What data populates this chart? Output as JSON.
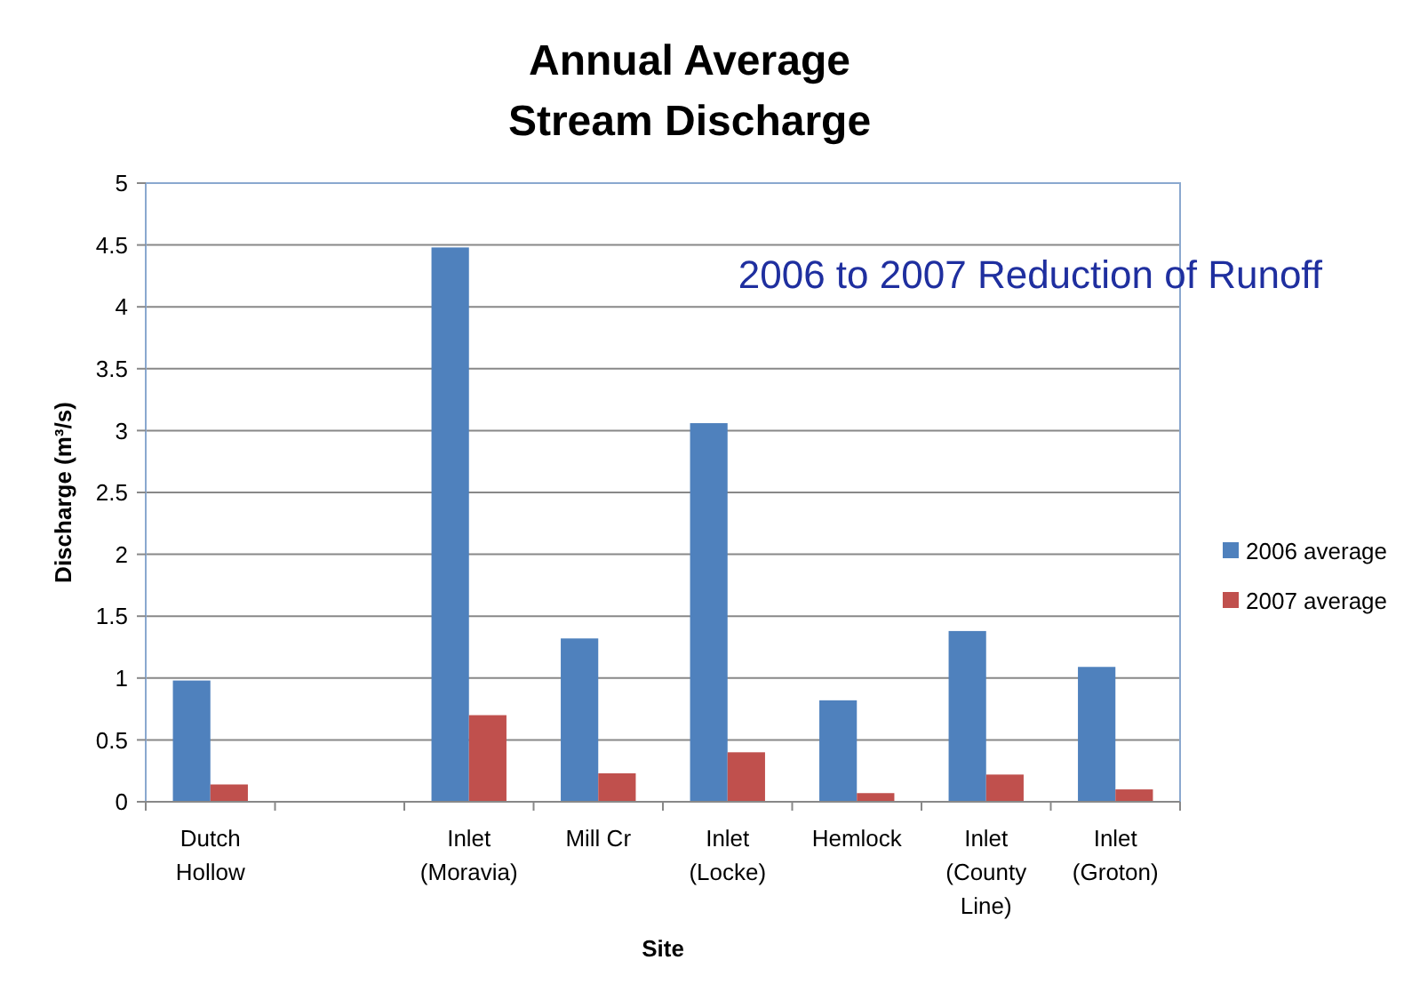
{
  "chart_data": {
    "type": "bar",
    "title": "Annual Average Stream Discharge",
    "xlabel": "Site",
    "ylabel": "Discharge (m³/s)",
    "categories": [
      "Dutch Hollow",
      null,
      "Inlet (Moravia)",
      "Mill Cr",
      "Inlet (Locke)",
      "Hemlock",
      "Inlet (County Line)",
      "Inlet (Groton)"
    ],
    "series": [
      {
        "name": "2006 average",
        "color": "#4f81bd",
        "values": [
          0.98,
          null,
          4.48,
          1.32,
          3.06,
          0.82,
          1.38,
          1.09
        ]
      },
      {
        "name": "2007 average",
        "color": "#c0504d",
        "values": [
          0.14,
          null,
          0.7,
          0.23,
          0.4,
          0.07,
          0.22,
          0.1
        ]
      }
    ],
    "ylim": [
      0,
      5
    ],
    "yticks": [
      0,
      0.5,
      1,
      1.5,
      2,
      2.5,
      3,
      3.5,
      4,
      4.5,
      5
    ],
    "grid": "y",
    "legend": "right",
    "annotations": [
      "2006 to 2007 Reduction of Runoff"
    ]
  }
}
